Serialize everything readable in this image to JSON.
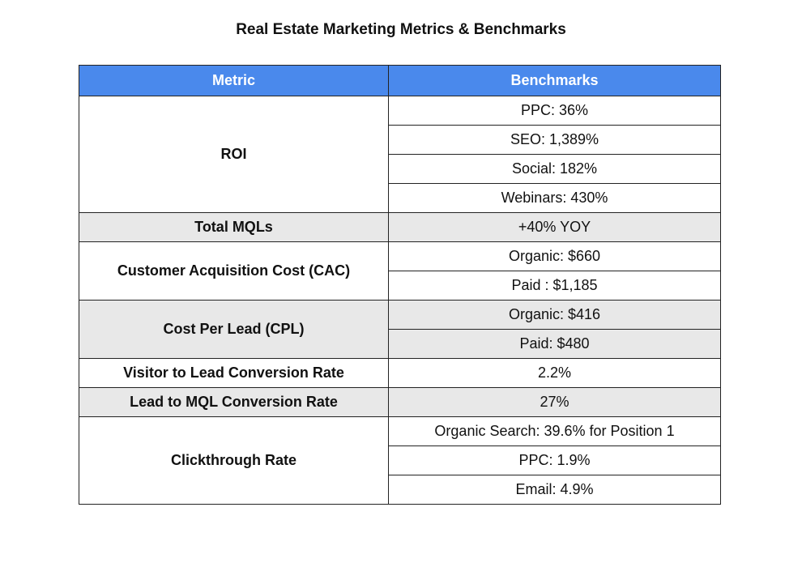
{
  "title": "Real Estate Marketing Metrics & Benchmarks",
  "headers": {
    "metric": "Metric",
    "benchmarks": "Benchmarks"
  },
  "rows": [
    {
      "metric": "ROI",
      "benchmarks": [
        "PPC: 36%",
        "SEO: 1,389%",
        "Social: 182%",
        "Webinars: 430%"
      ],
      "shaded": false
    },
    {
      "metric": "Total MQLs",
      "benchmarks": [
        "+40% YOY"
      ],
      "shaded": true
    },
    {
      "metric": "Customer Acquisition Cost (CAC)",
      "benchmarks": [
        "Organic: $660",
        "Paid : $1,185"
      ],
      "shaded": false
    },
    {
      "metric": "Cost Per Lead (CPL)",
      "benchmarks": [
        "Organic: $416",
        "Paid: $480"
      ],
      "shaded": true
    },
    {
      "metric": "Visitor to Lead Conversion Rate",
      "benchmarks": [
        "2.2%"
      ],
      "shaded": false
    },
    {
      "metric": "Lead to MQL Conversion Rate",
      "benchmarks": [
        "27%"
      ],
      "shaded": true
    },
    {
      "metric": "Clickthrough Rate",
      "benchmarks": [
        "Organic Search: 39.6% for Position 1",
        "PPC: 1.9%",
        "Email: 4.9%"
      ],
      "shaded": false
    }
  ]
}
